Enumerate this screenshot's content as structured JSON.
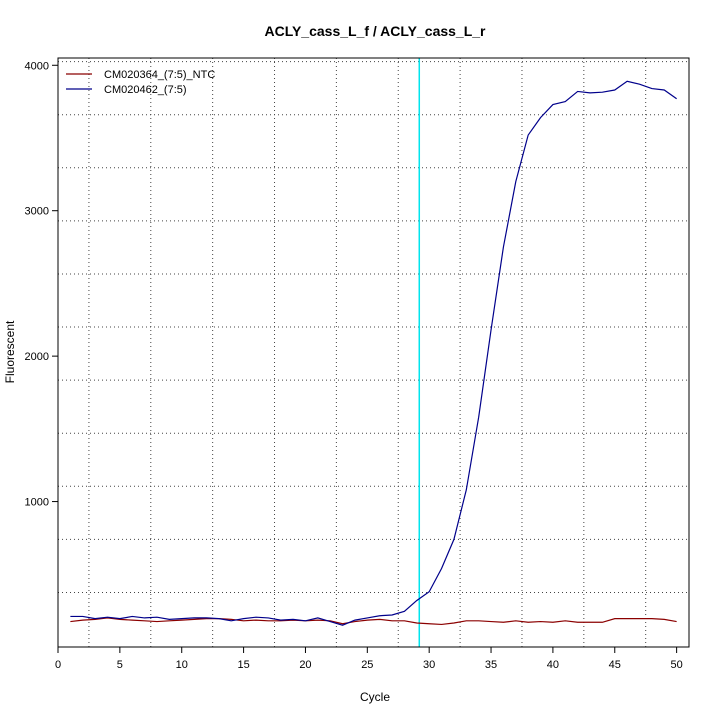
{
  "chart_data": {
    "type": "line",
    "title": "ACLY_cass_L_f / ACLY_cass_L_r",
    "xlabel": "Cycle",
    "ylabel": "Fluorescent",
    "xlim": [
      0,
      51
    ],
    "ylim": [
      0,
      4050
    ],
    "x_ticks": [
      0,
      5,
      10,
      15,
      20,
      25,
      30,
      35,
      40,
      45,
      50
    ],
    "y_ticks": [
      1000,
      2000,
      3000,
      4000
    ],
    "grid": true,
    "legend_position": "top-left",
    "threshold_cycle": 29.2,
    "threshold_color": "#00e5ee",
    "x": [
      1,
      2,
      3,
      4,
      5,
      6,
      7,
      8,
      9,
      10,
      11,
      12,
      13,
      14,
      15,
      16,
      17,
      18,
      19,
      20,
      21,
      22,
      23,
      24,
      25,
      26,
      27,
      28,
      29,
      30,
      31,
      32,
      33,
      34,
      35,
      36,
      37,
      38,
      39,
      40,
      41,
      42,
      43,
      44,
      45,
      46,
      47,
      48,
      49,
      50
    ],
    "series": [
      {
        "name": "CM020364_(7:5)_NTC",
        "color": "#8b0000",
        "values": [
          175,
          185,
          190,
          200,
          190,
          185,
          180,
          175,
          180,
          185,
          190,
          195,
          195,
          190,
          180,
          185,
          180,
          180,
          185,
          180,
          185,
          180,
          160,
          175,
          185,
          190,
          180,
          180,
          165,
          160,
          155,
          165,
          180,
          180,
          175,
          170,
          180,
          170,
          175,
          170,
          180,
          170,
          170,
          170,
          195,
          195,
          195,
          195,
          190,
          175
        ]
      },
      {
        "name": "CM020462_(7:5)",
        "color": "#00008b",
        "values": [
          210,
          210,
          195,
          205,
          195,
          210,
          200,
          205,
          190,
          195,
          200,
          200,
          195,
          180,
          195,
          205,
          200,
          185,
          190,
          180,
          200,
          175,
          150,
          185,
          200,
          215,
          220,
          245,
          320,
          380,
          540,
          740,
          1080,
          1580,
          2180,
          2750,
          3200,
          3520,
          3640,
          3730,
          3750,
          3820,
          3810,
          3815,
          3830,
          3890,
          3870,
          3840,
          3830,
          3770
        ]
      }
    ]
  }
}
